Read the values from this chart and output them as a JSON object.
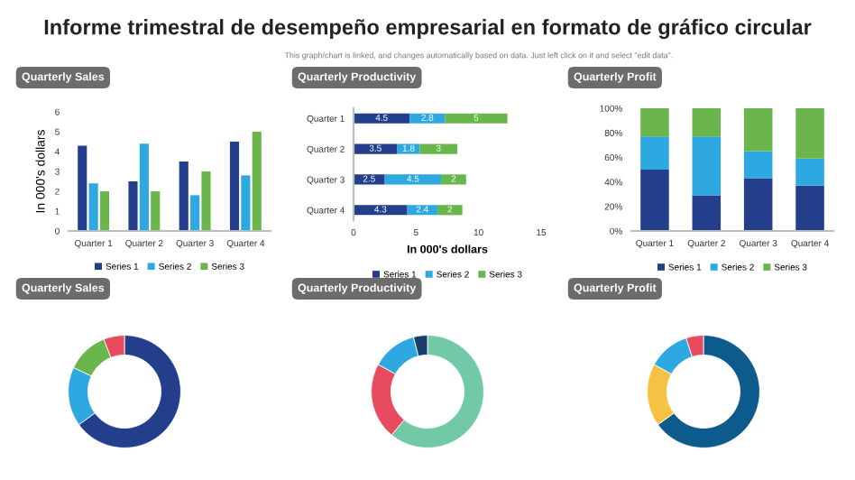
{
  "chart_data": [
    {
      "type": "other",
      "title": "Informe trimestral de desempeño empresarial en formato de gráfico circular",
      "subtitle": "This graph/chart is linked, and changes automatically based on data. Just left click on it and select \"edit data\"."
    },
    {
      "type": "bar",
      "title": "Quarterly Sales",
      "ylabel": "In 000's dollars",
      "categories": [
        "Quarter 1",
        "Quarter 2",
        "Quarter 3",
        "Quarter 4"
      ],
      "ylim": [
        0,
        6
      ],
      "yticks": [
        0,
        1,
        2,
        3,
        4,
        5,
        6
      ],
      "legend": "bottom",
      "series": [
        {
          "name": "Series 1",
          "color": "#233f8c",
          "values": [
            4.3,
            2.5,
            3.5,
            4.5
          ]
        },
        {
          "name": "Series 2",
          "color": "#2ea8e0",
          "values": [
            2.4,
            4.4,
            1.8,
            2.8
          ]
        },
        {
          "name": "Series 3",
          "color": "#6ab64c",
          "values": [
            2.0,
            2.0,
            3.0,
            5.0
          ]
        }
      ]
    },
    {
      "type": "bar",
      "title": "Quarterly Productivity",
      "xlabel": "In 000's dollars",
      "orientation": "horizontal",
      "stacked": true,
      "data_labels": true,
      "categories": [
        "Quarter 1",
        "Quarter 2",
        "Quarter 3",
        "Quarter 4"
      ],
      "xlim": [
        0,
        15
      ],
      "xticks": [
        0,
        5,
        10,
        15
      ],
      "legend": "bottom",
      "series": [
        {
          "name": "Series 1",
          "color": "#233f8c",
          "values": [
            4.5,
            3.5,
            2.5,
            4.3
          ]
        },
        {
          "name": "Series 2",
          "color": "#2ea8e0",
          "values": [
            2.8,
            1.8,
            4.5,
            2.4
          ]
        },
        {
          "name": "Series 3",
          "color": "#6ab64c",
          "values": [
            5,
            3,
            2,
            2
          ]
        }
      ]
    },
    {
      "type": "bar",
      "title": "Quarterly Profit",
      "stacked": true,
      "categories": [
        "Quarter 1",
        "Quarter 2",
        "Quarter 3",
        "Quarter 4"
      ],
      "ylim": [
        0,
        100
      ],
      "yticks": [
        {
          "value": 0,
          "label": "0%"
        },
        {
          "value": 20,
          "label": "20%"
        },
        {
          "value": 40,
          "label": "40%"
        },
        {
          "value": 60,
          "label": "60%"
        },
        {
          "value": 80,
          "label": "80%"
        },
        {
          "value": 100,
          "label": "100%"
        }
      ],
      "legend": "bottom",
      "series": [
        {
          "name": "Series 1",
          "color": "#233f8c",
          "values": [
            50,
            29,
            43,
            37
          ]
        },
        {
          "name": "Series 2",
          "color": "#2ea8e0",
          "values": [
            27,
            48,
            22,
            22
          ]
        },
        {
          "name": "Series 3",
          "color": "#6ab64c",
          "values": [
            23,
            23,
            35,
            41
          ]
        }
      ]
    },
    {
      "type": "donut",
      "title": "Quarterly Sales",
      "categories": [
        null,
        null,
        null,
        null
      ],
      "values": [
        65,
        17,
        12,
        6
      ],
      "colors": [
        "#233f8c",
        "#2ea8e0",
        "#6ab64c",
        "#e84a5f"
      ]
    },
    {
      "type": "donut",
      "title": "Quarterly Productivity",
      "categories": [
        null,
        null,
        null,
        null
      ],
      "values": [
        61,
        22,
        13,
        4
      ],
      "colors": [
        "#72c9a6",
        "#e84a5f",
        "#2ea8e0",
        "#1a3f6e"
      ]
    },
    {
      "type": "donut",
      "title": "Quarterly Profit",
      "categories": [
        null,
        null,
        null,
        null
      ],
      "values": [
        65,
        18,
        12,
        5
      ],
      "colors": [
        "#0d5b8c",
        "#f5c344",
        "#2ea8e0",
        "#e84a5f"
      ]
    }
  ]
}
